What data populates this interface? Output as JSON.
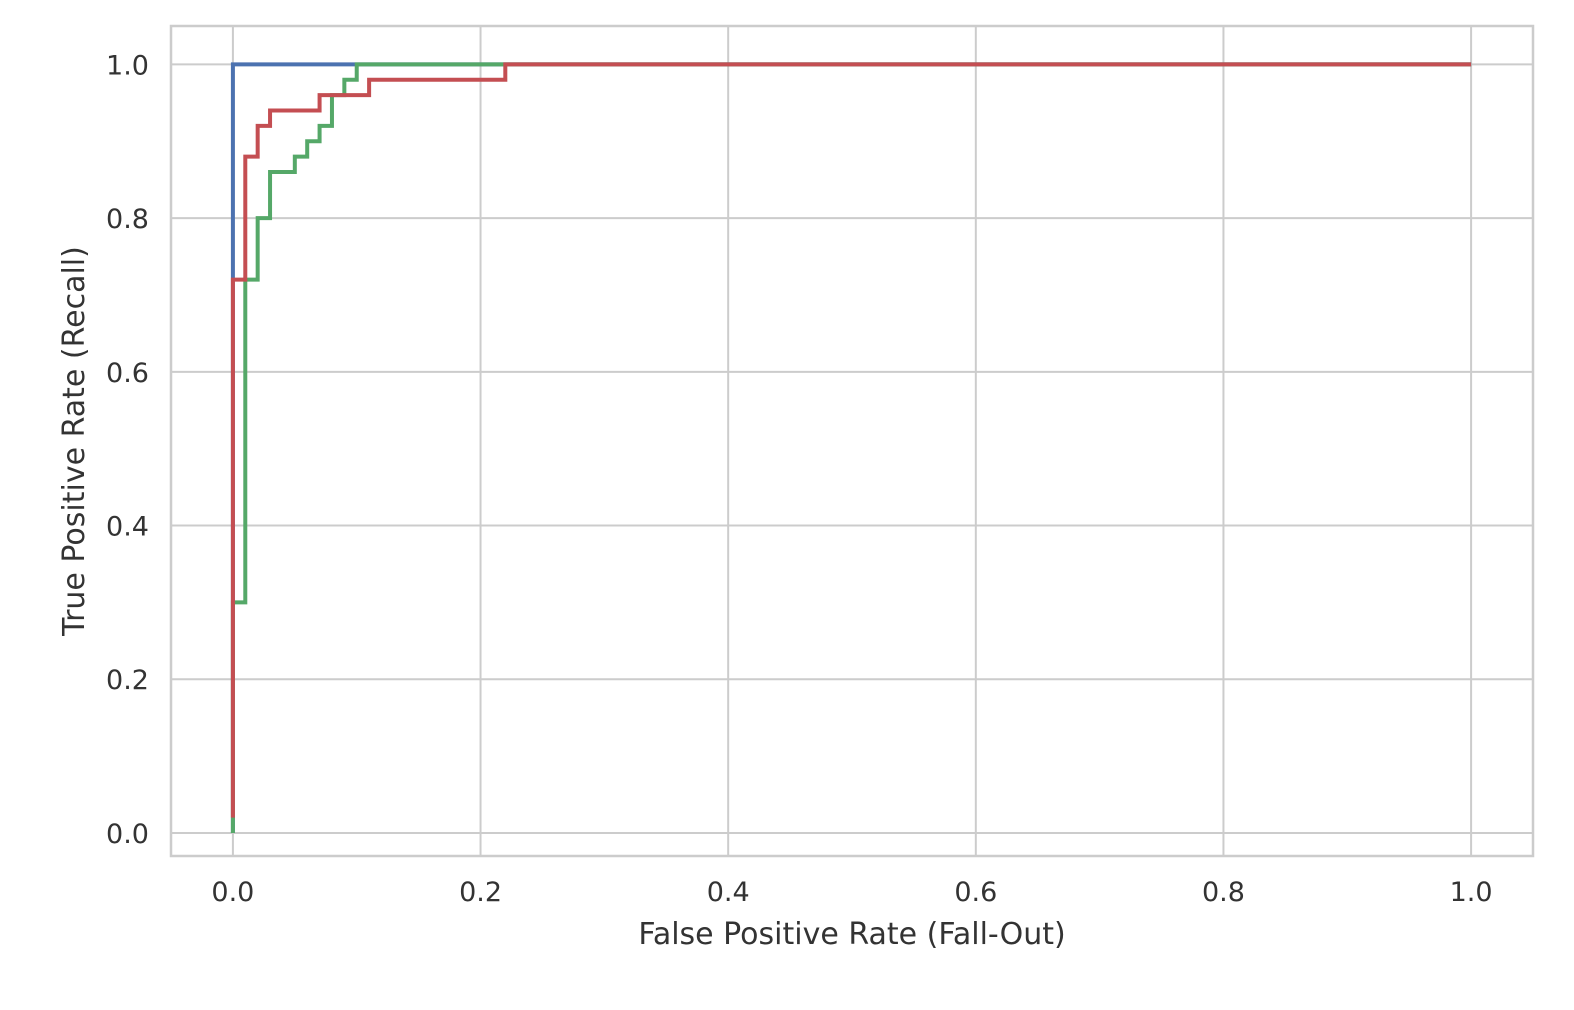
{
  "chart_data": {
    "type": "line",
    "xlabel": "False Positive Rate (Fall-Out)",
    "ylabel": "True Positive Rate (Recall)",
    "xlim": [
      -0.05,
      1.05
    ],
    "ylim": [
      -0.03,
      1.05
    ],
    "xticks": [
      "0.0",
      "0.2",
      "0.4",
      "0.6",
      "0.8",
      "1.0"
    ],
    "yticks": [
      "0.0",
      "0.2",
      "0.4",
      "0.6",
      "0.8",
      "1.0"
    ],
    "grid": true,
    "step": true,
    "series": [
      {
        "color": "#4c72b0",
        "x": [
          0.0,
          0.0,
          0.0,
          0.1,
          1.0
        ],
        "y": [
          0.0,
          0.72,
          1.0,
          1.0,
          1.0
        ]
      },
      {
        "color": "#55a868",
        "x": [
          0.0,
          0.0,
          0.01,
          0.01,
          0.02,
          0.02,
          0.03,
          0.03,
          0.05,
          0.05,
          0.06,
          0.06,
          0.07,
          0.07,
          0.08,
          0.08,
          0.09,
          0.09,
          0.1,
          0.1,
          0.22,
          1.0
        ],
        "y": [
          0.0,
          0.3,
          0.3,
          0.72,
          0.72,
          0.8,
          0.8,
          0.86,
          0.86,
          0.88,
          0.88,
          0.9,
          0.9,
          0.92,
          0.92,
          0.96,
          0.96,
          0.98,
          0.98,
          1.0,
          1.0,
          1.0
        ]
      },
      {
        "color": "#c44e52",
        "x": [
          0.0,
          0.0,
          0.01,
          0.01,
          0.02,
          0.02,
          0.03,
          0.03,
          0.07,
          0.07,
          0.11,
          0.11,
          0.22,
          0.22,
          1.0
        ],
        "y": [
          0.02,
          0.72,
          0.72,
          0.88,
          0.88,
          0.92,
          0.92,
          0.94,
          0.94,
          0.96,
          0.96,
          0.98,
          0.98,
          1.0,
          1.0
        ]
      }
    ]
  }
}
